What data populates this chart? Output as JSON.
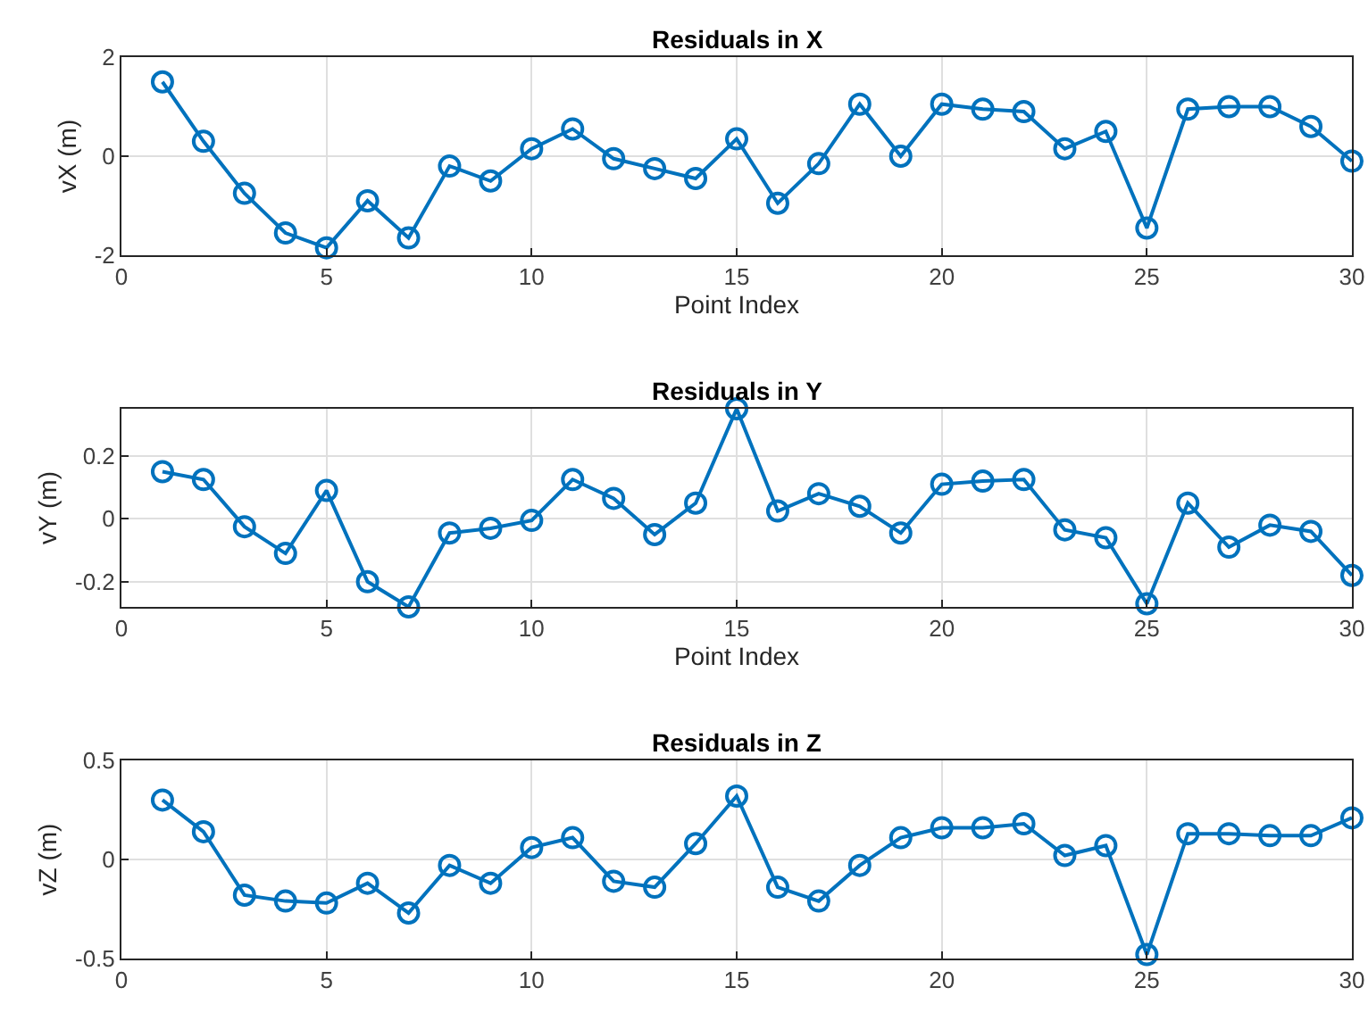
{
  "chart_data": [
    {
      "type": "line",
      "title": "Residuals in X",
      "xlabel": "Point Index",
      "ylabel": "vX (m)",
      "x": [
        1,
        2,
        3,
        4,
        5,
        6,
        7,
        8,
        9,
        10,
        11,
        12,
        13,
        14,
        15,
        16,
        17,
        18,
        19,
        20,
        21,
        22,
        23,
        24,
        25,
        26,
        27,
        28,
        29,
        30
      ],
      "series": [
        {
          "color": "#0072bd",
          "values": [
            1.5,
            0.3,
            -0.75,
            -1.55,
            -1.85,
            -0.9,
            -1.65,
            -0.2,
            -0.5,
            0.15,
            0.55,
            -0.05,
            -0.25,
            -0.45,
            0.35,
            -0.95,
            -0.15,
            1.05,
            0.0,
            1.05,
            0.95,
            0.9,
            0.15,
            0.5,
            -1.45,
            0.95,
            1.0,
            1.0,
            0.6,
            -0.1
          ]
        }
      ],
      "xlim": [
        0,
        30
      ],
      "xticks": [
        0,
        5,
        10,
        15,
        20,
        25,
        30
      ],
      "ylim": [
        -2,
        2
      ],
      "yticks": [
        -2,
        0,
        2
      ],
      "grid": true,
      "marker": "circle",
      "line_style": "solid"
    },
    {
      "type": "line",
      "title": "Residuals in Y",
      "xlabel": "Point Index",
      "ylabel": "vY (m)",
      "x": [
        1,
        2,
        3,
        4,
        5,
        6,
        7,
        8,
        9,
        10,
        11,
        12,
        13,
        14,
        15,
        16,
        17,
        18,
        19,
        20,
        21,
        22,
        23,
        24,
        25,
        26,
        27,
        28,
        29,
        30
      ],
      "series": [
        {
          "color": "#0072bd",
          "values": [
            0.15,
            0.125,
            -0.025,
            -0.11,
            0.09,
            -0.2,
            -0.28,
            -0.045,
            -0.03,
            -0.005,
            0.125,
            0.065,
            -0.05,
            0.05,
            0.35,
            0.025,
            0.08,
            0.04,
            -0.045,
            0.11,
            0.12,
            0.125,
            -0.035,
            -0.06,
            -0.27,
            0.05,
            -0.09,
            -0.02,
            -0.04,
            -0.18
          ]
        }
      ],
      "xlim": [
        0,
        30
      ],
      "xticks": [
        0,
        5,
        10,
        15,
        20,
        25,
        30
      ],
      "ylim": [
        -0.28,
        0.35
      ],
      "yticks": [
        -0.2,
        0,
        0.2
      ],
      "grid": true,
      "marker": "circle",
      "line_style": "solid"
    },
    {
      "type": "line",
      "title": "Residuals in Z",
      "ylabel": "vZ (m)",
      "x": [
        1,
        2,
        3,
        4,
        5,
        6,
        7,
        8,
        9,
        10,
        11,
        12,
        13,
        14,
        15,
        16,
        17,
        18,
        19,
        20,
        21,
        22,
        23,
        24,
        25,
        26,
        27,
        28,
        29,
        30
      ],
      "series": [
        {
          "color": "#0072bd",
          "values": [
            0.3,
            0.14,
            -0.18,
            -0.21,
            -0.22,
            -0.12,
            -0.27,
            -0.03,
            -0.12,
            0.06,
            0.11,
            -0.11,
            -0.14,
            0.08,
            0.32,
            -0.14,
            -0.21,
            -0.03,
            0.11,
            0.16,
            0.16,
            0.18,
            0.02,
            0.07,
            -0.48,
            0.13,
            0.13,
            0.12,
            0.12,
            0.21
          ]
        }
      ],
      "xlim": [
        0,
        30
      ],
      "xticks": [
        0,
        5,
        10,
        15,
        20,
        25,
        30
      ],
      "ylim": [
        -0.5,
        0.5
      ],
      "yticks": [
        -0.5,
        0,
        0.5
      ],
      "grid": true,
      "marker": "circle",
      "line_style": "solid"
    }
  ]
}
